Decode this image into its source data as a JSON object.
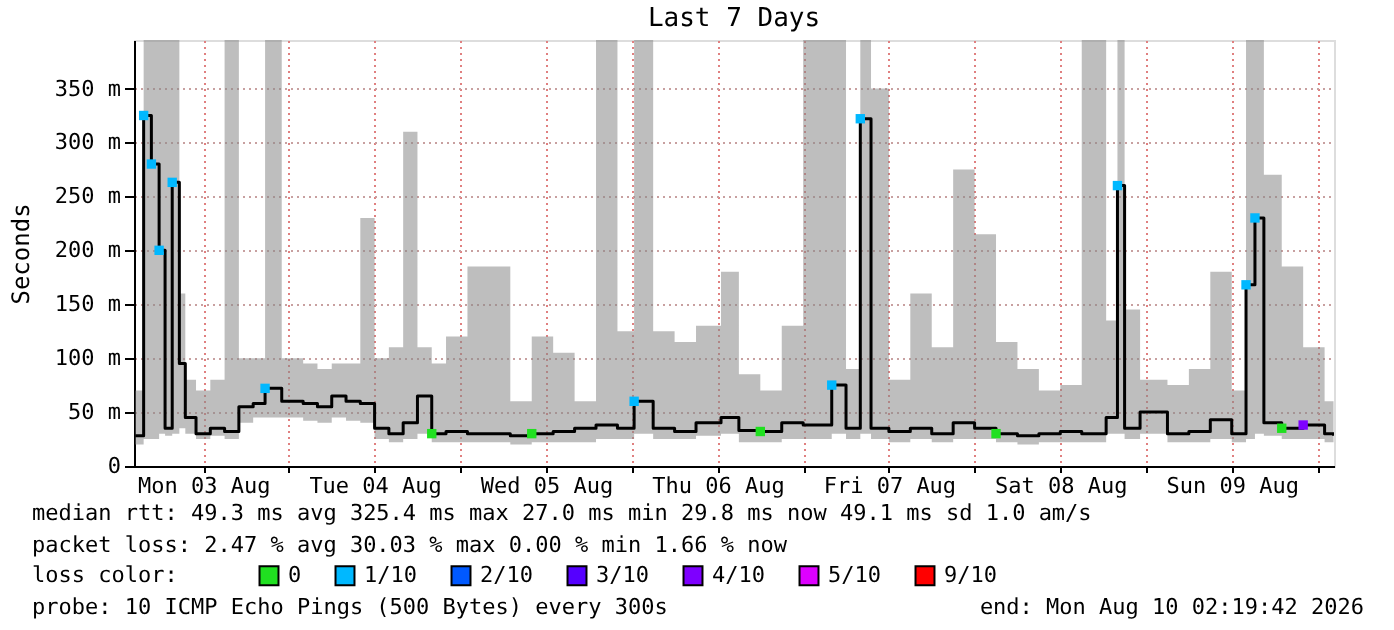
{
  "chart_data": {
    "type": "step",
    "title": "Last 7 Days",
    "ylabel": "Seconds",
    "xlim": [
      "2026-08-03T02:19",
      "2026-08-10T02:19"
    ],
    "xticks": [
      {
        "value": "2026-08-03T12:00",
        "label": "Mon 03 Aug"
      },
      {
        "value": "2026-08-04T00:00",
        "label": null
      },
      {
        "value": "2026-08-04T12:00",
        "label": "Tue 04 Aug"
      },
      {
        "value": "2026-08-05T00:00",
        "label": null
      },
      {
        "value": "2026-08-05T12:00",
        "label": "Wed 05 Aug"
      },
      {
        "value": "2026-08-06T00:00",
        "label": null
      },
      {
        "value": "2026-08-06T12:00",
        "label": "Thu 06 Aug"
      },
      {
        "value": "2026-08-07T00:00",
        "label": null
      },
      {
        "value": "2026-08-07T12:00",
        "label": "Fri 07 Aug"
      },
      {
        "value": "2026-08-08T00:00",
        "label": null
      },
      {
        "value": "2026-08-08T12:00",
        "label": "Sat 08 Aug"
      },
      {
        "value": "2026-08-09T00:00",
        "label": null
      },
      {
        "value": "2026-08-09T12:00",
        "label": "Sun 09 Aug"
      },
      {
        "value": "2026-08-10T00:00",
        "label": null
      }
    ],
    "ylim": [
      0,
      395
    ],
    "yticks": [
      0,
      {
        "value": 50,
        "label": "50 m"
      },
      {
        "value": 100,
        "label": "100 m"
      },
      {
        "value": 150,
        "label": "150 m"
      },
      {
        "value": 200,
        "label": "200 m"
      },
      {
        "value": 250,
        "label": "250 m"
      },
      {
        "value": 300,
        "label": "300 m"
      },
      {
        "value": 350,
        "label": "350 m"
      }
    ],
    "grid": true,
    "legend": "bottom",
    "legend_title": "loss color:",
    "series": [
      {
        "color": "#000000",
        "x": [
          "2026-08-03T02:30",
          "2026-08-03T03:40",
          "2026-08-03T04:45",
          "2026-08-03T05:50",
          "2026-08-03T06:40",
          "2026-08-03T07:40",
          "2026-08-03T08:40",
          "2026-08-03T09:30",
          "2026-08-03T11:00",
          "2026-08-03T13:00",
          "2026-08-03T15:00",
          "2026-08-03T17:00",
          "2026-08-03T19:00",
          "2026-08-03T20:40",
          "2026-08-03T23:00",
          "2026-08-04T02:00",
          "2026-08-04T04:00",
          "2026-08-04T06:00",
          "2026-08-04T08:00",
          "2026-08-04T10:00",
          "2026-08-04T12:00",
          "2026-08-04T14:00",
          "2026-08-04T16:00",
          "2026-08-04T18:00",
          "2026-08-04T20:00",
          "2026-08-04T22:00",
          "2026-08-05T01:00",
          "2026-08-05T04:00",
          "2026-08-05T07:00",
          "2026-08-05T10:00",
          "2026-08-05T13:00",
          "2026-08-05T16:00",
          "2026-08-05T19:00",
          "2026-08-05T22:00",
          "2026-08-06T00:20",
          "2026-08-06T03:00",
          "2026-08-06T06:00",
          "2026-08-06T09:00",
          "2026-08-06T12:30",
          "2026-08-06T15:00",
          "2026-08-06T18:00",
          "2026-08-06T21:00",
          "2026-08-07T00:00",
          "2026-08-07T04:00",
          "2026-08-07T06:00",
          "2026-08-07T08:00",
          "2026-08-07T09:30",
          "2026-08-07T12:00",
          "2026-08-07T15:00",
          "2026-08-07T18:00",
          "2026-08-07T21:00",
          "2026-08-08T00:00",
          "2026-08-08T03:00",
          "2026-08-08T06:00",
          "2026-08-08T09:00",
          "2026-08-08T12:00",
          "2026-08-08T15:00",
          "2026-08-08T18:25",
          "2026-08-08T20:00",
          "2026-08-08T21:00",
          "2026-08-08T23:10",
          "2026-08-09T03:00",
          "2026-08-09T06:00",
          "2026-08-09T09:00",
          "2026-08-09T12:00",
          "2026-08-09T14:00",
          "2026-08-09T15:15",
          "2026-08-09T16:30",
          "2026-08-09T19:00",
          "2026-08-09T22:00",
          "2026-08-10T01:00",
          "2026-08-10T02:15"
        ],
        "values": [
          28,
          325,
          280,
          200,
          35,
          263,
          95,
          45,
          30,
          35,
          32,
          55,
          58,
          72,
          60,
          58,
          55,
          65,
          60,
          58,
          35,
          30,
          40,
          65,
          30,
          32,
          30,
          30,
          28,
          30,
          32,
          35,
          38,
          35,
          60,
          35,
          32,
          40,
          45,
          33,
          32,
          40,
          38,
          75,
          35,
          322,
          35,
          32,
          35,
          30,
          40,
          35,
          30,
          28,
          30,
          32,
          30,
          45,
          260,
          35,
          50,
          30,
          32,
          43,
          30,
          168,
          230,
          40,
          35,
          38,
          30,
          28
        ],
        "lower": [
          20,
          25,
          25,
          30,
          28,
          30,
          35,
          30,
          25,
          28,
          25,
          40,
          45,
          45,
          45,
          42,
          40,
          45,
          42,
          40,
          25,
          22,
          25,
          30,
          22,
          22,
          22,
          22,
          20,
          22,
          22,
          22,
          25,
          25,
          30,
          25,
          25,
          28,
          30,
          22,
          22,
          25,
          25,
          30,
          25,
          30,
          25,
          22,
          25,
          22,
          25,
          25,
          22,
          20,
          22,
          22,
          22,
          30,
          30,
          25,
          30,
          22,
          22,
          25,
          22,
          25,
          30,
          28,
          25,
          25,
          22,
          20
        ],
        "upper": [
          70,
          395,
          395,
          395,
          395,
          395,
          160,
          80,
          70,
          80,
          395,
          100,
          100,
          395,
          100,
          95,
          90,
          95,
          95,
          230,
          100,
          110,
          310,
          110,
          95,
          120,
          185,
          185,
          60,
          120,
          105,
          60,
          395,
          125,
          395,
          125,
          115,
          130,
          180,
          85,
          70,
          130,
          395,
          395,
          90,
          395,
          350,
          80,
          160,
          110,
          275,
          215,
          115,
          90,
          70,
          75,
          395,
          135,
          395,
          145,
          80,
          75,
          90,
          180,
          70,
          395,
          395,
          270,
          185,
          110,
          60,
          55
        ]
      },
      {
        "type": "scatter",
        "marker": "square",
        "name": "0",
        "color": "#20e020",
        "x": [
          "2026-08-04T20:00",
          "2026-08-05T10:00",
          "2026-08-06T18:00",
          "2026-08-08T03:00",
          "2026-08-09T19:00"
        ],
        "values": [
          30,
          30,
          32,
          30,
          35
        ]
      },
      {
        "type": "scatter",
        "marker": "square",
        "name": "1/10",
        "color": "#00b8ff",
        "x": [
          "2026-08-03T03:40",
          "2026-08-03T04:45",
          "2026-08-03T05:50",
          "2026-08-03T07:40",
          "2026-08-03T20:40",
          "2026-08-06T00:20",
          "2026-08-07T04:00",
          "2026-08-07T08:00",
          "2026-08-08T20:00",
          "2026-08-09T14:00",
          "2026-08-09T15:15"
        ],
        "values": [
          325,
          280,
          200,
          263,
          72,
          60,
          75,
          322,
          260,
          168,
          230
        ]
      },
      {
        "type": "scatter",
        "marker": "square",
        "name": "2/10",
        "color": "#0059ff"
      },
      {
        "type": "scatter",
        "marker": "square",
        "name": "3/10",
        "color": "#5500ff"
      },
      {
        "type": "scatter",
        "marker": "square",
        "name": "4/10",
        "color": "#7e00ff",
        "x": [
          "2026-08-09T22:00"
        ],
        "values": [
          38
        ]
      },
      {
        "type": "scatter",
        "marker": "square",
        "name": "5/10",
        "color": "#dd00ff"
      },
      {
        "type": "scatter",
        "marker": "square",
        "name": "9/10",
        "color": "#ff0000"
      }
    ],
    "annotations": [
      "median rtt:  49.3 ms avg  325.4 ms max  27.0 ms min  29.8 ms now  49.1 ms sd  1.0   am/s",
      "packet loss: 2.47 % avg  30.03 % max  0.00 % min  1.66 % now",
      "probe:       10 ICMP Echo Pings (500 Bytes) every 300s",
      "end: Mon Aug 10 02:19:42 2026"
    ]
  }
}
